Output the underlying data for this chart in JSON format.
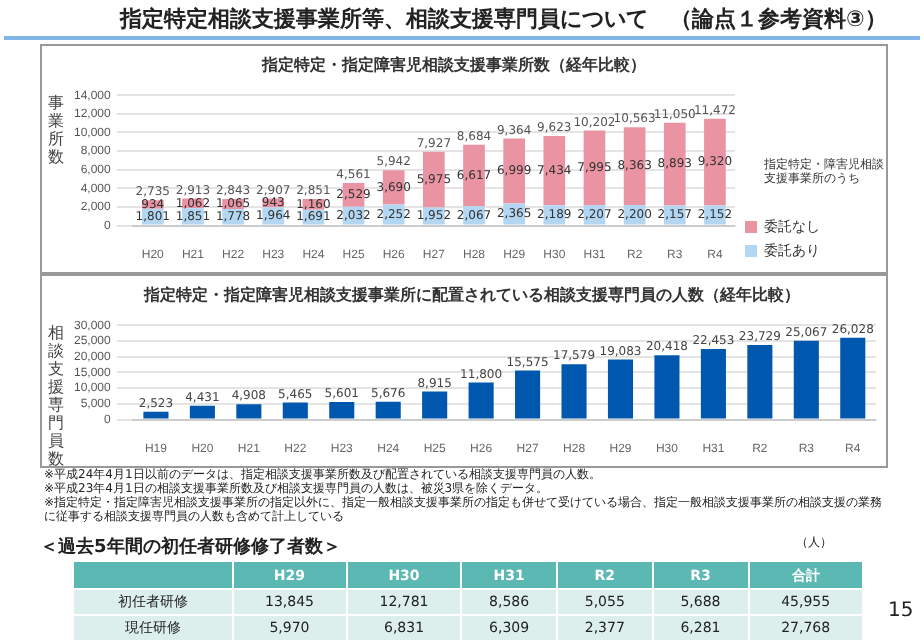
{
  "chart_data": [
    {
      "type": "bar",
      "title": "指定特定・指定障害児相談支援事業所数（経年比較）",
      "ylabel": "事業所数",
      "stacked": true,
      "grid": "y",
      "legend": "right",
      "legend_title": "指定特定・障害児相談支援事業所のうち",
      "categories": [
        "H20",
        "H21",
        "H22",
        "H23",
        "H24",
        "H25",
        "H26",
        "H27",
        "H28",
        "H29",
        "H30",
        "H31",
        "R2",
        "R3",
        "R4"
      ],
      "series": [
        {
          "name": "委託あり",
          "color": "#b3d7f2",
          "values": [
            1801,
            1851,
            1778,
            1964,
            1691,
            2032,
            2252,
            1952,
            2067,
            2365,
            2189,
            2207,
            2200,
            2157,
            2152
          ],
          "value_labels": [
            "1,801",
            "1,851",
            "1,778",
            "1,964",
            "1,691",
            "2,032",
            "2,252",
            "1,952",
            "2,067",
            "2,365",
            "2,189",
            "2,207",
            "2,200",
            "2,157",
            "2,152"
          ]
        },
        {
          "name": "委託なし",
          "color": "#e993a3",
          "values": [
            934,
            1062,
            1065,
            943,
            1160,
            2529,
            3690,
            5975,
            6617,
            6999,
            7434,
            7995,
            8363,
            8893,
            9320
          ],
          "value_labels": [
            "934",
            "1,062",
            "1,065",
            "943",
            "1,160",
            "2,529",
            "3,690",
            "5,975",
            "6,617",
            "6,999",
            "7,434",
            "7,995",
            "8,363",
            "8,893",
            "9,320"
          ]
        }
      ],
      "totals": [
        "2,735",
        "2,913",
        "2,843",
        "2,907",
        "2,851",
        "4,561",
        "5,942",
        "7,927",
        "8,684",
        "9,364",
        "9,623",
        "10,202",
        "10,563",
        "11,050",
        "11,472"
      ],
      "ylim": [
        0,
        14000
      ],
      "yticks": [
        0,
        {
          "value": 2000,
          "label": "2,000"
        },
        {
          "value": 4000,
          "label": "4,000"
        },
        {
          "value": 6000,
          "label": "6,000"
        },
        {
          "value": 8000,
          "label": "8,000"
        },
        {
          "value": 10000,
          "label": "10,000"
        },
        {
          "value": 12000,
          "label": "12,000"
        },
        {
          "value": 14000,
          "label": "14,000"
        }
      ],
      "annotations": [
        "指定特定相談支援事業所等、相談支援専門員について　（論点１参考資料③）"
      ]
    },
    {
      "type": "bar",
      "title": "指定特定・指定障害児相談支援事業所に配置されている相談支援専門員の人数（経年比較）",
      "ylabel": "相談支援専門員数",
      "grid": "y",
      "categories": [
        "H19",
        "H20",
        "H21",
        "H22",
        "H23",
        "H24",
        "H25",
        "H26",
        "H27",
        "H28",
        "H29",
        "H30",
        "H31",
        "R2",
        "R3",
        "R4"
      ],
      "series": [
        {
          "color": "#0058ae",
          "values": [
            2523,
            4431,
            4908,
            5465,
            5601,
            5676,
            8915,
            11800,
            15575,
            17579,
            19083,
            20418,
            22453,
            23729,
            25067,
            26028
          ],
          "value_labels": [
            "2,523",
            "4,431",
            "4,908",
            "5,465",
            "5,601",
            "5,676",
            "8,915",
            "11,800",
            "15,575",
            "17,579",
            "19,083",
            "20,418",
            "22,453",
            "23,729",
            "25,067",
            "26,028"
          ]
        }
      ],
      "ylim": [
        0,
        30000
      ],
      "yticks": [
        0,
        {
          "value": 5000,
          "label": "5,000"
        },
        {
          "value": 10000,
          "label": "10,000"
        },
        {
          "value": 15000,
          "label": "15,000"
        },
        {
          "value": 20000,
          "label": "20,000"
        },
        {
          "value": 25000,
          "label": "25,000"
        },
        {
          "value": 30000,
          "label": "30,000"
        }
      ],
      "annotations": [
        "※平成24年4月1日以前のデータは、指定相談支援事業所数及び配置されている相談支援専門員の人数。",
        "※平成23年4月1日の相談支援事業所数及び相談支援専門員の人数は、被災3県を除くデータ。",
        "※指定特定・指定障害児相談支援事業所の指定以外に、指定一般相談支援事業所の指定も併せて受けている場合、指定一般相談支援事業所の相談支援の業務に従事する相談支援専門員の人数も含めて計上している"
      ]
    },
    {
      "type": "other",
      "title": "＜過去5年間の初任者研修修了者数＞",
      "categories": [
        "H29",
        "H30",
        "H31",
        "R2",
        "R3",
        "合計"
      ],
      "series": [
        {
          "name": "初任者研修",
          "values": [
            13845,
            12781,
            8586,
            5055,
            5688,
            45955
          ],
          "value_labels": [
            "13,845",
            "12,781",
            "8,586",
            "5,055",
            "5,688",
            "45,955"
          ]
        },
        {
          "name": "現任研修",
          "values": [
            5970,
            6831,
            6309,
            2377,
            6281,
            27768
          ],
          "value_labels": [
            "5,970",
            "6,831",
            "6,309",
            "2,377",
            "6,281",
            "27,768"
          ]
        }
      ],
      "annotations": [
        "（人）",
        "15"
      ]
    }
  ]
}
